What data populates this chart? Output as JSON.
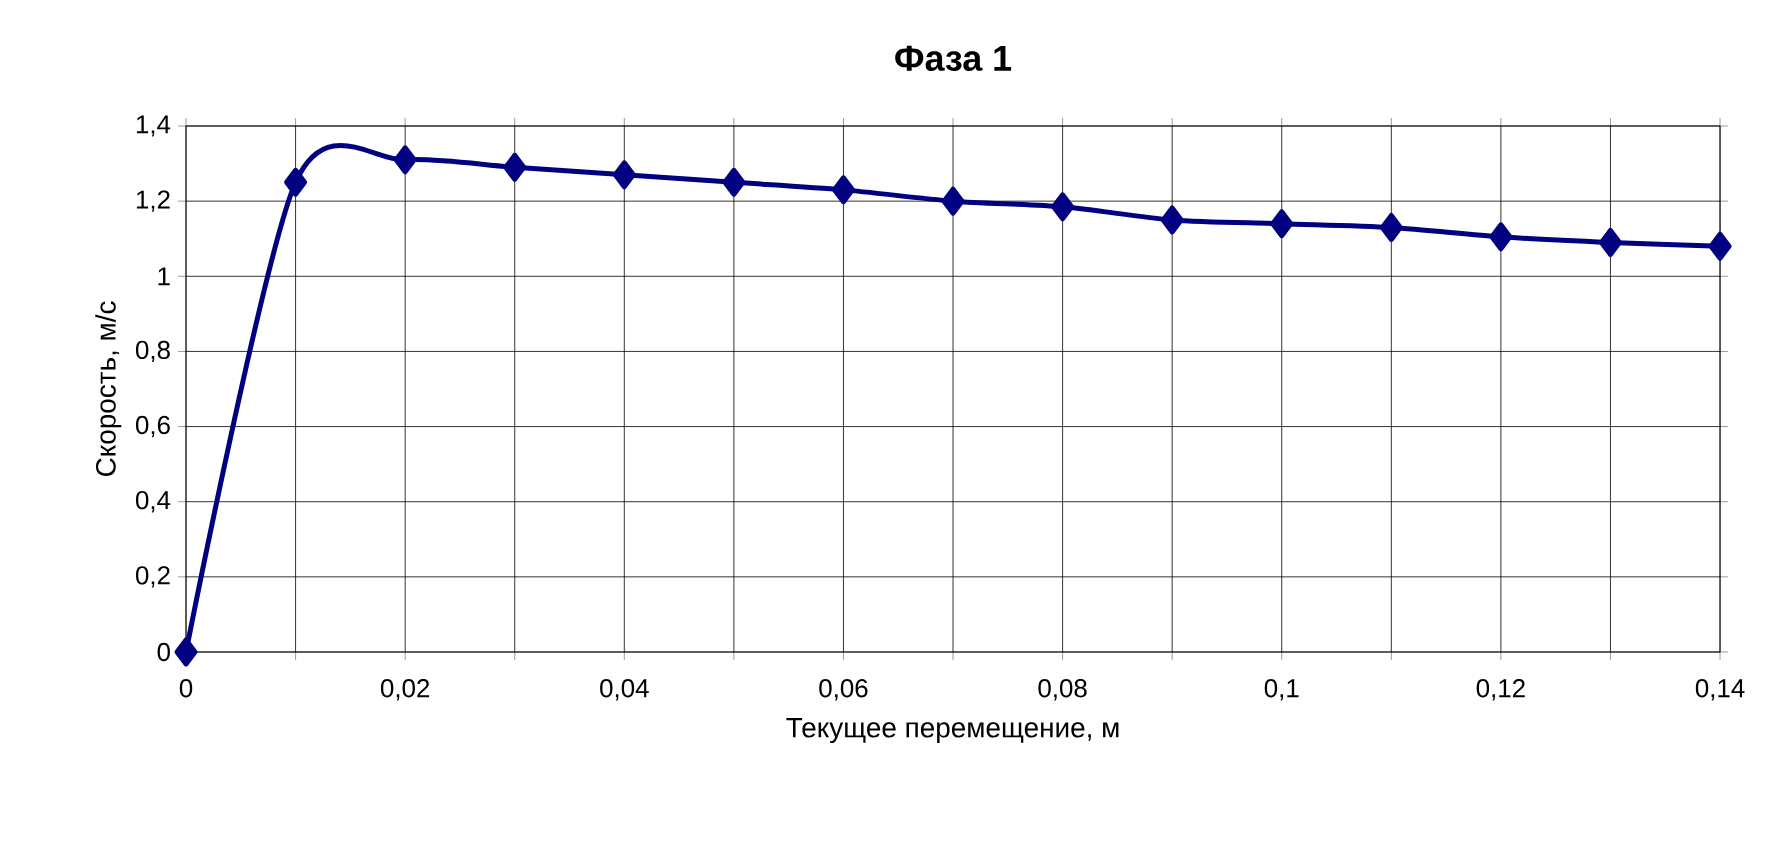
{
  "chart_data": {
    "type": "line",
    "title": "Фаза 1",
    "xlabel": "Текущее перемещение, м",
    "ylabel": "Скорость, м/с",
    "x": [
      0,
      0.01,
      0.02,
      0.03,
      0.04,
      0.05,
      0.06,
      0.07,
      0.08,
      0.09,
      0.1,
      0.11,
      0.12,
      0.13,
      0.14
    ],
    "series": [
      {
        "color": "#000080",
        "values": [
          0,
          1.25,
          1.31,
          1.29,
          1.27,
          1.25,
          1.23,
          1.2,
          1.185,
          1.15,
          1.14,
          1.13,
          1.105,
          1.09,
          1.08
        ]
      }
    ],
    "xlim": [
      0,
      0.14
    ],
    "xticks": [
      {
        "value": 0,
        "label": "0"
      },
      {
        "value": 0.01,
        "label": null
      },
      {
        "value": 0.02,
        "label": "0,02"
      },
      {
        "value": 0.03,
        "label": null
      },
      {
        "value": 0.04,
        "label": "0,04"
      },
      {
        "value": 0.05,
        "label": null
      },
      {
        "value": 0.06,
        "label": "0,06"
      },
      {
        "value": 0.07,
        "label": null
      },
      {
        "value": 0.08,
        "label": "0,08"
      },
      {
        "value": 0.09,
        "label": null
      },
      {
        "value": 0.1,
        "label": "0,1"
      },
      {
        "value": 0.11,
        "label": null
      },
      {
        "value": 0.12,
        "label": "0,12"
      },
      {
        "value": 0.13,
        "label": null
      },
      {
        "value": 0.14,
        "label": "0,14"
      }
    ],
    "ylim": [
      0,
      1.4
    ],
    "yticks": [
      {
        "value": 0,
        "label": "0"
      },
      {
        "value": 0.2,
        "label": "0,2"
      },
      {
        "value": 0.4,
        "label": "0,4"
      },
      {
        "value": 0.6,
        "label": "0,6"
      },
      {
        "value": 0.8,
        "label": "0,8"
      },
      {
        "value": 1,
        "label": "1"
      },
      {
        "value": 1.2,
        "label": "1,2"
      },
      {
        "value": 1.4,
        "label": "1,4"
      }
    ],
    "grid": true,
    "marker": "diamond",
    "line_style": "solid"
  }
}
